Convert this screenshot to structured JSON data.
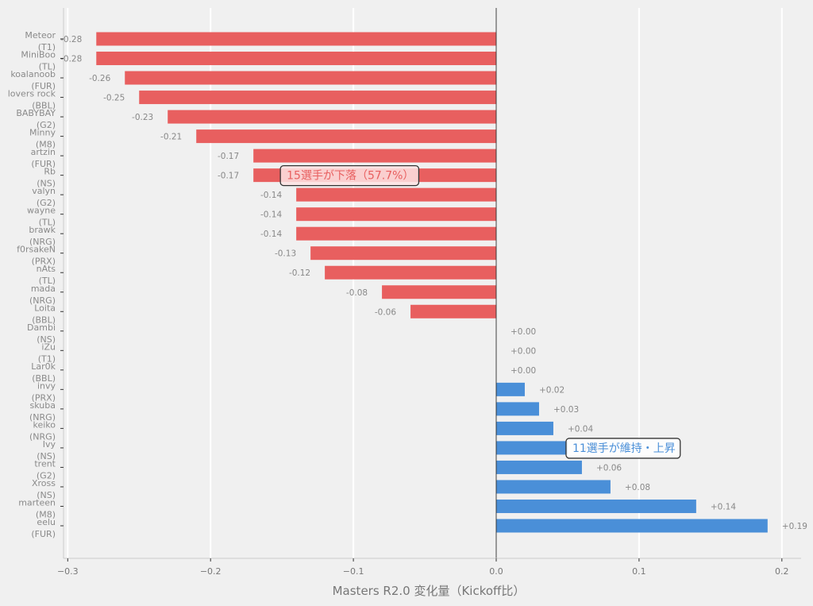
{
  "chart_data": {
    "type": "bar",
    "orientation": "horizontal",
    "title": "",
    "xlabel": "Masters R2.0 変化量（Kickoff比）",
    "ylabel": "",
    "xlim": [
      -0.302,
      0.212
    ],
    "xticks": [
      -0.3,
      -0.2,
      -0.1,
      0.0,
      0.1,
      0.2
    ],
    "xtick_labels": [
      "−0.3",
      "−0.2",
      "−0.1",
      "0.0",
      "0.1",
      "0.2"
    ],
    "grid": "vertical",
    "colors": {
      "negative": "#e85f5f",
      "non_negative": "#4a8fd8",
      "background": "#f0f0f0",
      "grid": "#ffffff",
      "spine": "#cccccc",
      "zero_line": "#333333"
    },
    "categories": [
      "Meteor\n(T1)",
      "MiniBoo\n(TL)",
      "koalanoob\n(FUR)",
      "lovers rock\n(BBL)",
      "BABYBAY\n(G2)",
      "Minny\n(M8)",
      "artzin\n(FUR)",
      "Rb\n(NS)",
      "valyn\n(G2)",
      "wayne\n(TL)",
      "brawk\n(NRG)",
      "f0rsakeN\n(PRX)",
      "nAts\n(TL)",
      "mada\n(NRG)",
      "Loita\n(BBL)",
      "Dambi\n(NS)",
      "iZu\n(T1)",
      "Lar0k\n(BBL)",
      "invy\n(PRX)",
      "skuba\n(NRG)",
      "keiko\n(NRG)",
      "Ivy\n(NS)",
      "trent\n(G2)",
      "Xross\n(NS)",
      "marteen\n(M8)",
      "eelu\n(FUR)"
    ],
    "players": [
      {
        "name": "Meteor",
        "team": "(T1)",
        "value": -0.28,
        "label": "-0.28"
      },
      {
        "name": "MiniBoo",
        "team": "(TL)",
        "value": -0.28,
        "label": "-0.28"
      },
      {
        "name": "koalanoob",
        "team": "(FUR)",
        "value": -0.26,
        "label": "-0.26"
      },
      {
        "name": "lovers rock",
        "team": "(BBL)",
        "value": -0.25,
        "label": "-0.25"
      },
      {
        "name": "BABYBAY",
        "team": "(G2)",
        "value": -0.23,
        "label": "-0.23"
      },
      {
        "name": "Minny",
        "team": "(M8)",
        "value": -0.21,
        "label": "-0.21"
      },
      {
        "name": "artzin",
        "team": "(FUR)",
        "value": -0.17,
        "label": "-0.17"
      },
      {
        "name": "Rb",
        "team": "(NS)",
        "value": -0.17,
        "label": "-0.17"
      },
      {
        "name": "valyn",
        "team": "(G2)",
        "value": -0.14,
        "label": "-0.14"
      },
      {
        "name": "wayne",
        "team": "(TL)",
        "value": -0.14,
        "label": "-0.14"
      },
      {
        "name": "brawk",
        "team": "(NRG)",
        "value": -0.14,
        "label": "-0.14"
      },
      {
        "name": "f0rsakeN",
        "team": "(PRX)",
        "value": -0.13,
        "label": "-0.13"
      },
      {
        "name": "nAts",
        "team": "(TL)",
        "value": -0.12,
        "label": "-0.12"
      },
      {
        "name": "mada",
        "team": "(NRG)",
        "value": -0.08,
        "label": "-0.08"
      },
      {
        "name": "Loita",
        "team": "(BBL)",
        "value": -0.06,
        "label": "-0.06"
      },
      {
        "name": "Dambi",
        "team": "(NS)",
        "value": 0.0,
        "label": "+0.00"
      },
      {
        "name": "iZu",
        "team": "(T1)",
        "value": 0.0,
        "label": "+0.00"
      },
      {
        "name": "Lar0k",
        "team": "(BBL)",
        "value": 0.0,
        "label": "+0.00"
      },
      {
        "name": "invy",
        "team": "(PRX)",
        "value": 0.02,
        "label": "+0.02"
      },
      {
        "name": "skuba",
        "team": "(NRG)",
        "value": 0.03,
        "label": "+0.03"
      },
      {
        "name": "keiko",
        "team": "(NRG)",
        "value": 0.04,
        "label": "+0.04"
      },
      {
        "name": "Ivy",
        "team": "(NS)",
        "value": 0.05,
        "label": "+0.05"
      },
      {
        "name": "trent",
        "team": "(G2)",
        "value": 0.06,
        "label": "+0.06"
      },
      {
        "name": "Xross",
        "team": "(NS)",
        "value": 0.08,
        "label": "+0.08"
      },
      {
        "name": "marteen",
        "team": "(M8)",
        "value": 0.14,
        "label": "+0.14"
      },
      {
        "name": "eelu",
        "team": "(FUR)",
        "value": 0.19,
        "label": "+0.19"
      }
    ],
    "values": [
      -0.28,
      -0.28,
      -0.26,
      -0.25,
      -0.23,
      -0.21,
      -0.17,
      -0.17,
      -0.14,
      -0.14,
      -0.14,
      -0.13,
      -0.12,
      -0.08,
      -0.06,
      0.0,
      0.0,
      0.0,
      0.02,
      0.03,
      0.04,
      0.05,
      0.06,
      0.08,
      0.14,
      0.19
    ],
    "annotations": [
      {
        "text": "15選手が下落（57.7%）",
        "x": -0.15,
        "row": 7,
        "color": "#e85f5f",
        "fill": "#fde3e3"
      },
      {
        "text": "11選手が維持・上昇",
        "x": 0.05,
        "row": 21,
        "color": "#4a8fd8",
        "fill": "#ffffff"
      }
    ],
    "legend": "none"
  }
}
